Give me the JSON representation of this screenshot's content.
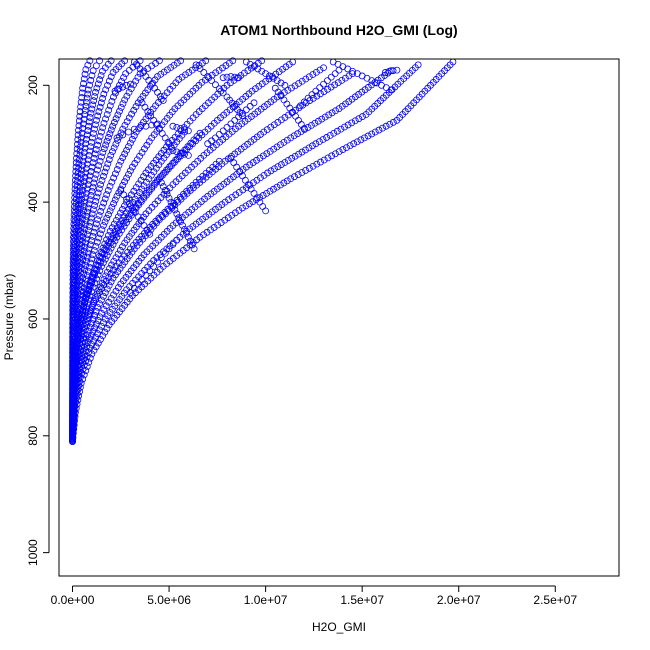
{
  "chart_data": {
    "type": "scatter",
    "title": "ATOM1 Northbound H2O_GMI (Log)",
    "xlabel": "H2O_GMI",
    "ylabel": "Pressure (mbar)",
    "xlim": [
      -700000,
      28300000
    ],
    "ylim": [
      1040,
      155
    ],
    "y_reversed": true,
    "x_ticks": [
      {
        "value": 0,
        "label": "0.0e+00"
      },
      {
        "value": 5000000,
        "label": "5.0e+06"
      },
      {
        "value": 10000000,
        "label": "1.0e+07"
      },
      {
        "value": 15000000,
        "label": "1.5e+07"
      },
      {
        "value": 20000000,
        "label": "2.0e+07"
      },
      {
        "value": 25000000,
        "label": "2.5e+07"
      }
    ],
    "y_ticks": [
      {
        "value": 200,
        "label": "200"
      },
      {
        "value": 400,
        "label": "400"
      },
      {
        "value": 600,
        "label": "600"
      },
      {
        "value": 800,
        "label": "800"
      },
      {
        "value": 1000,
        "label": "1000"
      }
    ],
    "marker": "open-circle",
    "color": "#0000ff",
    "series": [
      {
        "x": [
          0,
          150000,
          450000,
          1000000,
          1900000,
          3100000,
          4700000,
          6600000,
          8800000,
          11300000,
          14000000,
          16800000,
          19700000
        ],
        "y": [
          810,
          760,
          710,
          660,
          610,
          560,
          510,
          460,
          410,
          360,
          310,
          260,
          160
        ]
      },
      {
        "x": [
          0,
          120000,
          400000,
          900000,
          1700000,
          2800000,
          4200000,
          5900000,
          7900000,
          10100000,
          12600000,
          15200000,
          17900000
        ],
        "y": [
          810,
          750,
          700,
          650,
          600,
          550,
          500,
          450,
          400,
          350,
          300,
          250,
          165
        ]
      },
      {
        "x": [
          0,
          100000,
          350000,
          800000,
          1500000,
          2500000,
          3700000,
          5200000,
          7000000,
          9000000,
          11300000,
          13800000,
          16500000
        ],
        "y": [
          808,
          745,
          695,
          640,
          590,
          540,
          490,
          440,
          390,
          340,
          290,
          240,
          175
        ]
      },
      {
        "x": [
          0,
          90000,
          300000,
          700000,
          1300000,
          2100000,
          3200000,
          4500000,
          6100000,
          7900000,
          9900000,
          12100000,
          14500000
        ],
        "y": [
          806,
          740,
          690,
          635,
          580,
          530,
          480,
          430,
          380,
          330,
          280,
          230,
          180
        ]
      },
      {
        "x": [
          0,
          80000,
          260000,
          600000,
          1100000,
          1800000,
          2700000,
          3800000,
          5200000,
          6800000,
          8600000,
          10600000,
          13000000
        ],
        "y": [
          805,
          735,
          680,
          625,
          570,
          520,
          470,
          420,
          370,
          320,
          270,
          220,
          170
        ]
      },
      {
        "x": [
          0,
          70000,
          220000,
          500000,
          900000,
          1500000,
          2300000,
          3300000,
          4500000,
          5900000,
          7500000,
          9300000,
          11400000
        ],
        "y": [
          804,
          730,
          670,
          615,
          560,
          510,
          460,
          410,
          360,
          310,
          260,
          210,
          160
        ]
      },
      {
        "x": [
          0,
          60000,
          190000,
          420000,
          780000,
          1300000,
          1950000,
          2800000,
          3800000,
          5000000,
          6400000,
          8000000,
          9800000
        ],
        "y": [
          802,
          720,
          660,
          600,
          550,
          500,
          450,
          400,
          350,
          300,
          250,
          200,
          158
        ]
      },
      {
        "x": [
          0,
          50000,
          160000,
          350000,
          650000,
          1050000,
          1600000,
          2300000,
          3100000,
          4100000,
          5300000,
          6700000,
          8300000
        ],
        "y": [
          800,
          710,
          650,
          590,
          540,
          490,
          440,
          390,
          340,
          290,
          240,
          195,
          158
        ]
      },
      {
        "x": [
          0,
          40000,
          130000,
          290000,
          530000,
          860000,
          1300000,
          1850000,
          2500000,
          3300000,
          4300000,
          5500000,
          6900000
        ],
        "y": [
          798,
          700,
          640,
          580,
          530,
          480,
          430,
          380,
          330,
          280,
          235,
          190,
          158
        ]
      },
      {
        "x": [
          0,
          30000,
          100000,
          230000,
          420000,
          680000,
          1020000,
          1450000,
          1980000,
          2600000,
          3400000,
          4400000,
          5600000
        ],
        "y": [
          796,
          690,
          630,
          570,
          520,
          470,
          420,
          370,
          320,
          275,
          230,
          185,
          158
        ]
      },
      {
        "x": [
          0,
          25000,
          80000,
          180000,
          330000,
          540000,
          810000,
          1150000,
          1570000,
          2080000,
          2700000,
          3500000,
          4500000
        ],
        "y": [
          794,
          680,
          620,
          560,
          510,
          460,
          410,
          360,
          315,
          270,
          225,
          180,
          158
        ]
      },
      {
        "x": [
          0,
          20000,
          60000,
          140000,
          260000,
          420000,
          630000,
          900000,
          1230000,
          1630000,
          2120000,
          2750000,
          3500000
        ],
        "y": [
          792,
          670,
          610,
          550,
          500,
          450,
          400,
          355,
          310,
          265,
          220,
          180,
          158
        ]
      },
      {
        "x": [
          0,
          15000,
          45000,
          100000,
          190000,
          310000,
          470000,
          680000,
          930000,
          1240000,
          1620000,
          2100000,
          2700000
        ],
        "y": [
          790,
          660,
          600,
          540,
          490,
          440,
          395,
          350,
          305,
          260,
          215,
          178,
          158
        ]
      },
      {
        "x": [
          0,
          10000,
          30000,
          70000,
          130000,
          220000,
          340000,
          490000,
          680000,
          910000,
          1190000,
          1550000,
          2000000
        ],
        "y": [
          788,
          650,
          590,
          530,
          480,
          435,
          390,
          345,
          300,
          255,
          212,
          176,
          158
        ]
      },
      {
        "x": [
          0,
          8000,
          20000,
          45000,
          85000,
          145000,
          225000,
          330000,
          460000,
          620000,
          820000,
          1070000,
          1400000
        ],
        "y": [
          786,
          640,
          580,
          520,
          470,
          425,
          380,
          335,
          290,
          250,
          208,
          175,
          158
        ]
      },
      {
        "x": [
          0,
          5000,
          12000,
          28000,
          52000,
          88000,
          138000,
          205000,
          290000,
          395000,
          525000,
          690000,
          900000
        ],
        "y": [
          784,
          630,
          570,
          510,
          460,
          415,
          370,
          325,
          285,
          245,
          205,
          173,
          158
        ]
      },
      {
        "x": [
          0,
          20000,
          60000,
          160000,
          350000,
          650000,
          1050000,
          1550000,
          2200000,
          2900000,
          3700000,
          4600000,
          5800000
        ],
        "y": [
          808,
          748,
          700,
          655,
          612,
          570,
          528,
          488,
          450,
          412,
          372,
          330,
          280
        ]
      },
      {
        "x": [
          0,
          30000,
          90000,
          220000,
          480000,
          900000,
          1500000,
          2250000,
          3150000,
          4150000,
          5250000,
          6400000,
          7600000
        ],
        "y": [
          808,
          752,
          708,
          666,
          626,
          586,
          548,
          510,
          474,
          438,
          402,
          366,
          330
        ]
      },
      {
        "x": [
          0,
          20000,
          70000,
          170000,
          360000,
          680000,
          1150000,
          1750000,
          2500000,
          3400000,
          4400000,
          5500000,
          6600000
        ],
        "y": [
          806,
          742,
          696,
          652,
          608,
          566,
          524,
          482,
          442,
          402,
          362,
          322,
          282
        ]
      },
      {
        "x": [
          8200000,
          8500000,
          8800000,
          9100000,
          9400000,
          9700000,
          10000000
        ],
        "y": [
          325,
          340,
          355,
          370,
          385,
          400,
          415
        ]
      },
      {
        "x": [
          6400000,
          6800000,
          7200000,
          7600000,
          8000000,
          8400000,
          8800000
        ],
        "y": [
          165,
          178,
          192,
          206,
          220,
          236,
          252
        ]
      },
      {
        "x": [
          7000000,
          7400000,
          7800000,
          8200000,
          8600000,
          9000000,
          9400000
        ],
        "y": [
          300,
          290,
          278,
          266,
          254,
          242,
          230
        ]
      },
      {
        "x": [
          2300000,
          2600000,
          2900000,
          3200000,
          3500000,
          3800000,
          4100000,
          4400000
        ],
        "y": [
          290,
          285,
          280,
          275,
          272,
          270,
          268,
          266
        ]
      },
      {
        "x": [
          3000000,
          3400000,
          3800000,
          4200000,
          4600000,
          5000000,
          5400000
        ],
        "y": [
          555,
          540,
          525,
          510,
          495,
          480,
          465
        ]
      },
      {
        "x": [
          2200000,
          2400000,
          2600000,
          2800000,
          3000000
        ],
        "y": [
          210,
          206,
          203,
          200,
          198
        ]
      },
      {
        "x": [
          7800000,
          8000000,
          8200000,
          8400000,
          8600000
        ],
        "y": [
          187,
          186,
          185,
          186,
          187
        ]
      },
      {
        "x": [
          5200000,
          5400000,
          5600000,
          5800000,
          6000000
        ],
        "y": [
          270,
          272,
          274,
          276,
          278
        ]
      },
      {
        "x": [
          5200000,
          5400000,
          5600000,
          5800000,
          6000000
        ],
        "y": [
          312,
          314,
          316,
          318,
          320
        ]
      },
      {
        "x": [
          16200000,
          16400000,
          16600000,
          16800000
        ],
        "y": [
          178,
          176,
          175,
          174
        ]
      },
      {
        "x": [
          13500000,
          14000000,
          14500000,
          15000000,
          15500000,
          16000000,
          16500000
        ],
        "y": [
          160,
          168,
          176,
          184,
          192,
          200,
          208
        ]
      },
      {
        "x": [
          10500000,
          10800000,
          11100000,
          11400000,
          11700000,
          12000000
        ],
        "y": [
          205,
          218,
          232,
          246,
          260,
          274
        ]
      },
      {
        "x": [
          3600000,
          3900000,
          4200000,
          4500000,
          4800000,
          5100000
        ],
        "y": [
          230,
          245,
          260,
          275,
          290,
          305
        ]
      },
      {
        "x": [
          4500000,
          4800000,
          5100000,
          5400000,
          5700000,
          6000000,
          6300000
        ],
        "y": [
          360,
          380,
          400,
          420,
          440,
          460,
          480
        ]
      },
      {
        "x": [
          2500000,
          2800000,
          3100000,
          3400000,
          3700000,
          4000000
        ],
        "y": [
          380,
          395,
          410,
          425,
          440,
          455
        ]
      },
      {
        "x": [
          3200000,
          3500000,
          3800000,
          4100000,
          4400000,
          4700000
        ],
        "y": [
          160,
          172,
          185,
          198,
          212,
          226
        ]
      },
      {
        "x": [
          9000000,
          9400000,
          9800000,
          10200000,
          10600000,
          11000000
        ],
        "y": [
          160,
          168,
          176,
          184,
          192,
          200
        ]
      },
      {
        "x": [
          11800000,
          12200000,
          12600000,
          13000000,
          13400000,
          13800000
        ],
        "y": [
          235,
          222,
          210,
          198,
          186,
          174
        ]
      }
    ]
  }
}
